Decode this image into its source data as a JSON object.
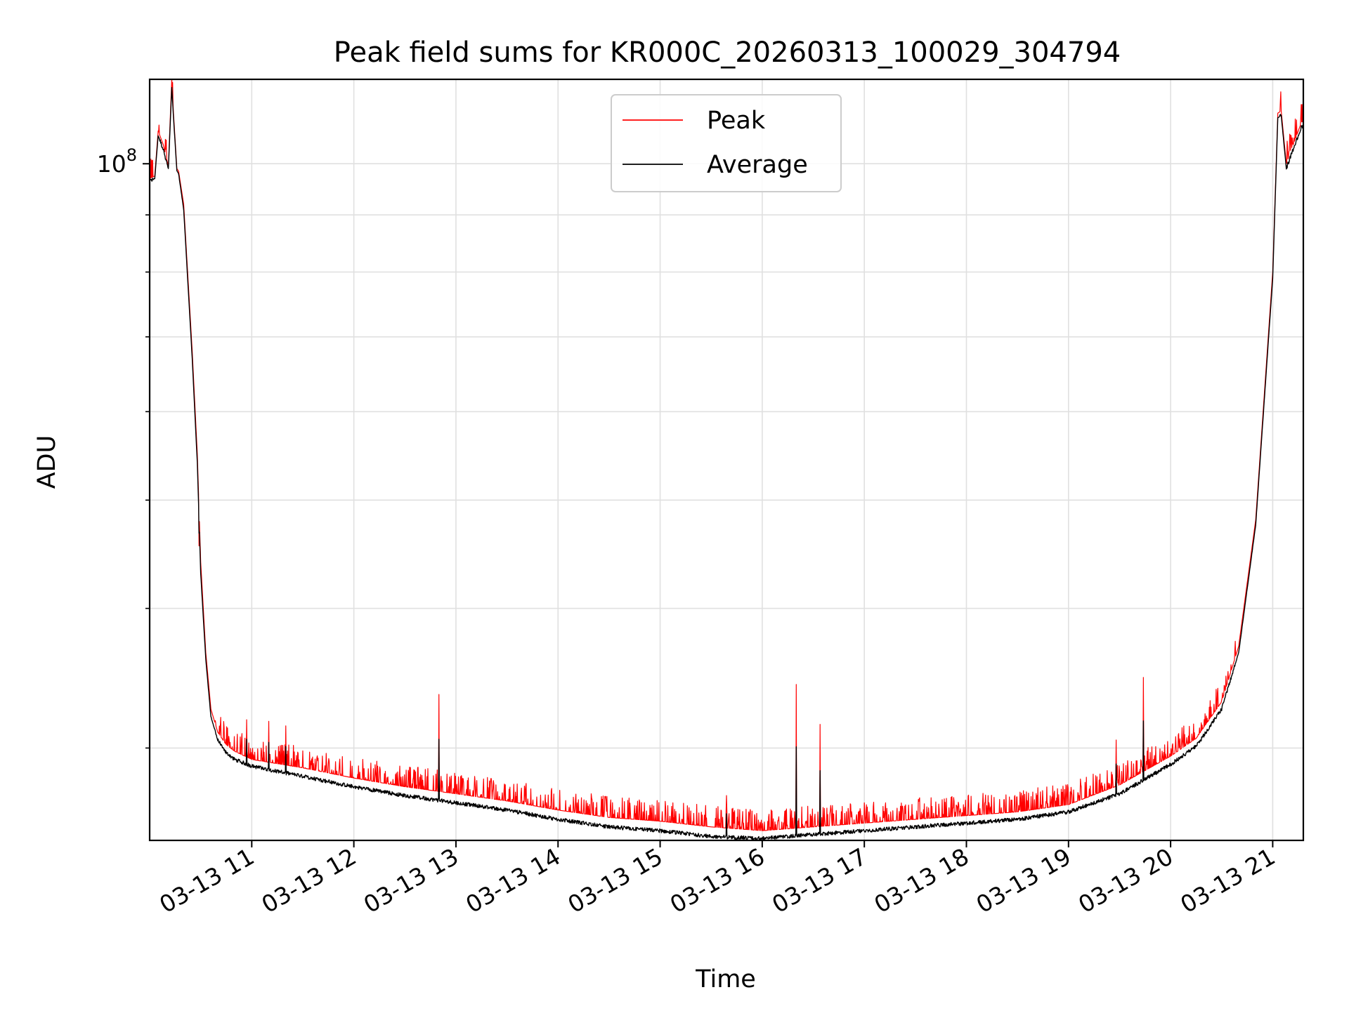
{
  "chart_data": {
    "type": "line",
    "title": "Peak field sums for KR000C_20260313_100029_304794",
    "xlabel": "Time",
    "ylabel": "ADU",
    "yscale": "log",
    "xlim": [
      "2026-03-13 10:00",
      "2026-03-13 21:18"
    ],
    "ylim": [
      24800000,
      119000000
    ],
    "grid": true,
    "legend_position": "top-center",
    "x_tick_labels": [
      "03-13 11",
      "03-13 12",
      "03-13 13",
      "03-13 14",
      "03-13 15",
      "03-13 16",
      "03-13 17",
      "03-13 18",
      "03-13 19",
      "03-13 20",
      "03-13 21"
    ],
    "y_tick_labels": [
      {
        "base": "10",
        "exp": "8",
        "value": 100000000
      }
    ],
    "colors": {
      "peak": "#ff0000",
      "average": "#000000",
      "grid": "#e0e0e0"
    },
    "series": [
      {
        "name": "Peak",
        "x": [
          "2026-03-13 10:00",
          "2026-03-13 10:03",
          "2026-03-13 10:05",
          "2026-03-13 10:08",
          "2026-03-13 10:11",
          "2026-03-13 10:13",
          "2026-03-13 10:14",
          "2026-03-13 10:16",
          "2026-03-13 10:17",
          "2026-03-13 10:20",
          "2026-03-13 10:25",
          "2026-03-13 10:28",
          "2026-03-13 10:30",
          "2026-03-13 10:33",
          "2026-03-13 10:36",
          "2026-03-13 10:40",
          "2026-03-13 10:45",
          "2026-03-13 10:50",
          "2026-03-13 11:00",
          "2026-03-13 11:30",
          "2026-03-13 12:00",
          "2026-03-13 12:30",
          "2026-03-13 13:00",
          "2026-03-13 13:30",
          "2026-03-13 14:00",
          "2026-03-13 14:30",
          "2026-03-13 15:00",
          "2026-03-13 15:30",
          "2026-03-13 16:00",
          "2026-03-13 16:30",
          "2026-03-13 17:00",
          "2026-03-13 17:30",
          "2026-03-13 18:00",
          "2026-03-13 18:30",
          "2026-03-13 19:00",
          "2026-03-13 19:30",
          "2026-03-13 20:00",
          "2026-03-13 20:15",
          "2026-03-13 20:30",
          "2026-03-13 20:40",
          "2026-03-13 20:50",
          "2026-03-13 21:00",
          "2026-03-13 21:03",
          "2026-03-13 21:05",
          "2026-03-13 21:08",
          "2026-03-13 21:12",
          "2026-03-13 21:17"
        ],
        "values": [
          97000000,
          97500000,
          107000000,
          104000000,
          99500000,
          119000000,
          111000000,
          99000000,
          98500000,
          92000000,
          68000000,
          55000000,
          44000000,
          36500000,
          32500000,
          31000000,
          30200000,
          29800000,
          29300000,
          28800000,
          28200000,
          27700000,
          27300000,
          26900000,
          26400000,
          26000000,
          25800000,
          25500000,
          25300000,
          25500000,
          25700000,
          25900000,
          26100000,
          26300000,
          26700000,
          27800000,
          29500000,
          30600000,
          33000000,
          37000000,
          48000000,
          80000000,
          111000000,
          111500000,
          100000000,
          104000000,
          109000000
        ],
        "spikes": [
          {
            "x": "2026-03-13 10:29",
            "value": 45500000
          },
          {
            "x": "2026-03-13 10:57",
            "value": 31800000
          },
          {
            "x": "2026-03-13 11:10",
            "value": 31700000
          },
          {
            "x": "2026-03-13 11:20",
            "value": 31400000
          },
          {
            "x": "2026-03-13 12:50",
            "value": 33500000
          },
          {
            "x": "2026-03-13 15:39",
            "value": 27200000
          },
          {
            "x": "2026-03-13 16:20",
            "value": 34200000
          },
          {
            "x": "2026-03-13 16:34",
            "value": 31500000
          },
          {
            "x": "2026-03-13 19:28",
            "value": 30500000
          },
          {
            "x": "2026-03-13 19:44",
            "value": 34700000
          }
        ]
      },
      {
        "name": "Average",
        "x": [
          "2026-03-13 10:00",
          "2026-03-13 10:03",
          "2026-03-13 10:05",
          "2026-03-13 10:08",
          "2026-03-13 10:11",
          "2026-03-13 10:13",
          "2026-03-13 10:14",
          "2026-03-13 10:16",
          "2026-03-13 10:17",
          "2026-03-13 10:20",
          "2026-03-13 10:25",
          "2026-03-13 10:28",
          "2026-03-13 10:30",
          "2026-03-13 10:33",
          "2026-03-13 10:36",
          "2026-03-13 10:40",
          "2026-03-13 10:45",
          "2026-03-13 10:50",
          "2026-03-13 11:00",
          "2026-03-13 11:30",
          "2026-03-13 12:00",
          "2026-03-13 12:30",
          "2026-03-13 13:00",
          "2026-03-13 13:30",
          "2026-03-13 14:00",
          "2026-03-13 14:30",
          "2026-03-13 15:00",
          "2026-03-13 15:30",
          "2026-03-13 16:00",
          "2026-03-13 16:30",
          "2026-03-13 17:00",
          "2026-03-13 17:30",
          "2026-03-13 18:00",
          "2026-03-13 18:30",
          "2026-03-13 19:00",
          "2026-03-13 19:30",
          "2026-03-13 20:00",
          "2026-03-13 20:15",
          "2026-03-13 20:30",
          "2026-03-13 20:40",
          "2026-03-13 20:50",
          "2026-03-13 21:00",
          "2026-03-13 21:03",
          "2026-03-13 21:05",
          "2026-03-13 21:08",
          "2026-03-13 21:12",
          "2026-03-13 21:17"
        ],
        "values": [
          96500000,
          97000000,
          106000000,
          103000000,
          99000000,
          117000000,
          110000000,
          98500000,
          98000000,
          91000000,
          67000000,
          54000000,
          43000000,
          36000000,
          32000000,
          30500000,
          29700000,
          29300000,
          28900000,
          28300000,
          27700000,
          27200000,
          26800000,
          26400000,
          25900000,
          25500000,
          25300000,
          25000000,
          24900000,
          25100000,
          25300000,
          25500000,
          25700000,
          25900000,
          26300000,
          27300000,
          29000000,
          30100000,
          32500000,
          36500000,
          47500000,
          79000000,
          110000000,
          110500000,
          99000000,
          103000000,
          108000000
        ]
      }
    ]
  }
}
